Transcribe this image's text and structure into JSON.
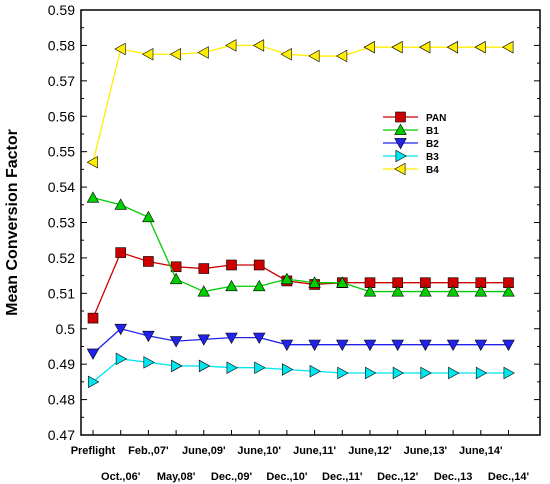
{
  "chart_data": {
    "type": "line",
    "title": "",
    "xlabel": "",
    "ylabel": "Mean Conversion Factor",
    "ylim": [
      0.47,
      0.59
    ],
    "yticks": [
      "0.47",
      "0.48",
      "0.49",
      "0.5",
      "0.51",
      "0.52",
      "0.53",
      "0.54",
      "0.55",
      "0.56",
      "0.57",
      "0.58",
      "0.59"
    ],
    "categories": [
      "Preflight",
      "Oct.,06'",
      "Feb.,07'",
      "May,08'",
      "June,09'",
      "Dec.,09'",
      "June,10'",
      "Dec.,10'",
      "June,11'",
      "Dec.,11'",
      "June,12'",
      "Dec.,12'",
      "June,13'",
      "Dec.,13",
      "June,14'",
      "Dec.,14'"
    ],
    "grid": false,
    "legend_position": "right-middle",
    "series": [
      {
        "name": "PAN",
        "color": "#cc0000",
        "marker": "square",
        "values": [
          0.503,
          0.5215,
          0.519,
          0.5175,
          0.517,
          0.518,
          0.518,
          0.5135,
          0.5125,
          0.513,
          0.513,
          0.513,
          0.513,
          0.513,
          0.513,
          0.513
        ]
      },
      {
        "name": "B1",
        "color": "#00cc00",
        "marker": "triangle-up",
        "values": [
          0.537,
          0.535,
          0.5315,
          0.514,
          0.5105,
          0.512,
          0.512,
          0.514,
          0.513,
          0.513,
          0.5105,
          0.5105,
          0.5105,
          0.5105,
          0.5105,
          0.5105
        ]
      },
      {
        "name": "B2",
        "color": "#2222ee",
        "marker": "triangle-down",
        "values": [
          0.493,
          0.5,
          0.498,
          0.4965,
          0.497,
          0.4975,
          0.4975,
          0.4955,
          0.4955,
          0.4955,
          0.4955,
          0.4955,
          0.4955,
          0.4955,
          0.4955,
          0.4955
        ]
      },
      {
        "name": "B3",
        "color": "#00e5ee",
        "marker": "triangle-right",
        "values": [
          0.485,
          0.4915,
          0.4905,
          0.4895,
          0.4895,
          0.489,
          0.489,
          0.4885,
          0.488,
          0.4875,
          0.4875,
          0.4875,
          0.4875,
          0.4875,
          0.4875,
          0.4875
        ]
      },
      {
        "name": "B4",
        "color": "#ffee00",
        "marker": "triangle-left",
        "values": [
          0.547,
          0.579,
          0.5775,
          0.5775,
          0.578,
          0.58,
          0.58,
          0.5775,
          0.577,
          0.577,
          0.5795,
          0.5795,
          0.5795,
          0.5795,
          0.5795,
          0.5795
        ]
      }
    ]
  }
}
